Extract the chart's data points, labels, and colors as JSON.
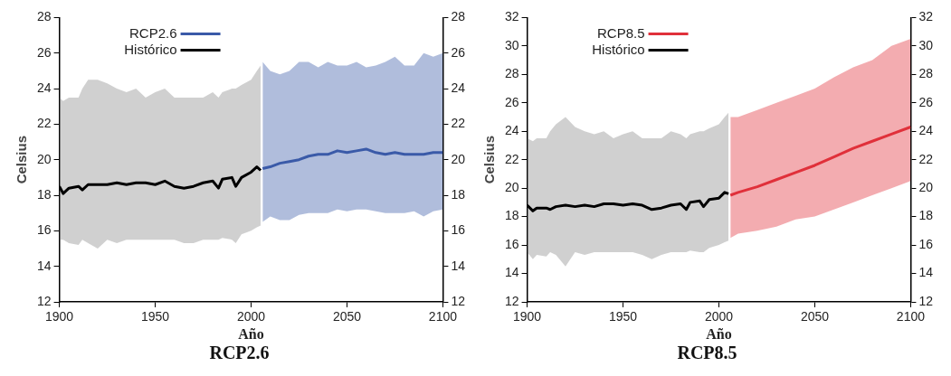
{
  "chart_data": [
    {
      "type": "line",
      "title": "RCP2.6",
      "xlabel": "Año",
      "ylabel": "Celsius",
      "xlim": [
        1900,
        2100
      ],
      "xticks": [
        1900,
        1950,
        2000,
        2050,
        2100
      ],
      "ylim": [
        12,
        28
      ],
      "yticks": [
        12,
        14,
        16,
        18,
        20,
        22,
        24,
        26,
        28
      ],
      "y2lim": [
        12,
        28
      ],
      "y2ticks": [
        12,
        14,
        16,
        18,
        20,
        22,
        24,
        26,
        28
      ],
      "legend": "top left",
      "line_style": "solid",
      "marker": "none",
      "series": [
        {
          "name": "RCP2.6",
          "color": "#3a5aa8",
          "x": [
            2006,
            2010,
            2015,
            2020,
            2025,
            2030,
            2035,
            2040,
            2045,
            2050,
            2055,
            2060,
            2065,
            2070,
            2075,
            2080,
            2085,
            2090,
            2095,
            2100
          ],
          "values": [
            19.5,
            19.6,
            19.8,
            19.9,
            20.0,
            20.2,
            20.3,
            20.3,
            20.5,
            20.4,
            20.5,
            20.6,
            20.4,
            20.3,
            20.4,
            20.3,
            20.3,
            20.3,
            20.4,
            20.4
          ],
          "lower": [
            16.5,
            16.8,
            16.6,
            16.6,
            16.9,
            17.0,
            17.0,
            17.0,
            17.2,
            17.1,
            17.2,
            17.2,
            17.1,
            17.0,
            17.0,
            17.0,
            17.1,
            16.8,
            17.1,
            17.2
          ],
          "upper": [
            25.5,
            25.0,
            24.8,
            25.0,
            25.5,
            25.5,
            25.2,
            25.5,
            25.3,
            25.3,
            25.5,
            25.2,
            25.3,
            25.5,
            25.8,
            25.3,
            25.3,
            26.0,
            25.8,
            26.0
          ]
        },
        {
          "name": "Histórico",
          "color": "#000000",
          "x": [
            1900,
            1902,
            1905,
            1910,
            1912,
            1915,
            1920,
            1925,
            1930,
            1935,
            1940,
            1945,
            1950,
            1955,
            1960,
            1965,
            1970,
            1975,
            1980,
            1983,
            1985,
            1990,
            1992,
            1995,
            2000,
            2003,
            2005
          ],
          "values": [
            18.5,
            18.1,
            18.4,
            18.5,
            18.3,
            18.6,
            18.6,
            18.6,
            18.7,
            18.6,
            18.7,
            18.7,
            18.6,
            18.8,
            18.5,
            18.4,
            18.5,
            18.7,
            18.8,
            18.4,
            18.9,
            19.0,
            18.5,
            19.0,
            19.3,
            19.6,
            19.4
          ],
          "lower": [
            15.5,
            15.5,
            15.3,
            15.2,
            15.5,
            15.3,
            15.0,
            15.5,
            15.3,
            15.5,
            15.5,
            15.5,
            15.5,
            15.5,
            15.5,
            15.3,
            15.3,
            15.5,
            15.5,
            15.5,
            15.6,
            15.5,
            15.3,
            15.8,
            16.0,
            16.2,
            16.3
          ],
          "upper": [
            23.5,
            23.3,
            23.5,
            23.5,
            24.0,
            24.5,
            24.5,
            24.3,
            24.0,
            23.8,
            24.0,
            23.5,
            23.8,
            24.0,
            23.5,
            23.5,
            23.5,
            23.5,
            23.8,
            23.5,
            23.8,
            24.0,
            24.0,
            24.2,
            24.5,
            25.0,
            25.3
          ]
        }
      ]
    },
    {
      "type": "line",
      "title": "RCP8.5",
      "xlabel": "Año",
      "ylabel": "Celsius",
      "xlim": [
        1900,
        2100
      ],
      "xticks": [
        1900,
        1950,
        2000,
        2050,
        2100
      ],
      "ylim": [
        12,
        32
      ],
      "yticks": [
        12,
        14,
        16,
        18,
        20,
        22,
        24,
        26,
        28,
        30,
        32
      ],
      "y2lim": [
        12,
        32
      ],
      "y2ticks": [
        12,
        14,
        16,
        18,
        20,
        22,
        24,
        26,
        28,
        30,
        32
      ],
      "legend": "top left",
      "line_style": "solid",
      "marker": "none",
      "series": [
        {
          "name": "RCP8.5",
          "color": "#e0303a",
          "x": [
            2006,
            2010,
            2020,
            2030,
            2040,
            2050,
            2060,
            2070,
            2080,
            2090,
            2100
          ],
          "values": [
            19.5,
            19.7,
            20.1,
            20.6,
            21.1,
            21.6,
            22.2,
            22.8,
            23.3,
            23.8,
            24.3
          ],
          "lower": [
            16.5,
            16.8,
            17.0,
            17.3,
            17.8,
            18.0,
            18.5,
            19.0,
            19.5,
            20.0,
            20.5
          ],
          "upper": [
            25.0,
            25.0,
            25.5,
            26.0,
            26.5,
            27.0,
            27.8,
            28.5,
            29.0,
            30.0,
            30.5
          ]
        },
        {
          "name": "Histórico",
          "color": "#000000",
          "x": [
            1900,
            1903,
            1905,
            1910,
            1912,
            1915,
            1920,
            1925,
            1930,
            1935,
            1940,
            1945,
            1950,
            1955,
            1960,
            1965,
            1970,
            1975,
            1980,
            1983,
            1985,
            1990,
            1992,
            1995,
            2000,
            2003,
            2005
          ],
          "values": [
            18.8,
            18.4,
            18.6,
            18.6,
            18.5,
            18.7,
            18.8,
            18.7,
            18.8,
            18.7,
            18.9,
            18.9,
            18.8,
            18.9,
            18.8,
            18.5,
            18.6,
            18.8,
            18.9,
            18.5,
            19.0,
            19.1,
            18.7,
            19.2,
            19.3,
            19.7,
            19.6
          ],
          "lower": [
            15.5,
            15.0,
            15.3,
            15.2,
            15.5,
            15.3,
            14.5,
            15.5,
            15.3,
            15.5,
            15.5,
            15.5,
            15.5,
            15.5,
            15.3,
            15.0,
            15.3,
            15.5,
            15.5,
            15.5,
            15.6,
            15.5,
            15.5,
            15.8,
            16.0,
            16.2,
            16.3
          ],
          "upper": [
            23.5,
            23.3,
            23.5,
            23.5,
            24.0,
            24.5,
            25.0,
            24.3,
            24.0,
            23.8,
            24.0,
            23.5,
            23.8,
            24.0,
            23.5,
            23.5,
            23.5,
            24.0,
            23.8,
            23.5,
            23.8,
            24.0,
            24.0,
            24.2,
            24.5,
            25.0,
            25.3
          ]
        }
      ]
    }
  ]
}
